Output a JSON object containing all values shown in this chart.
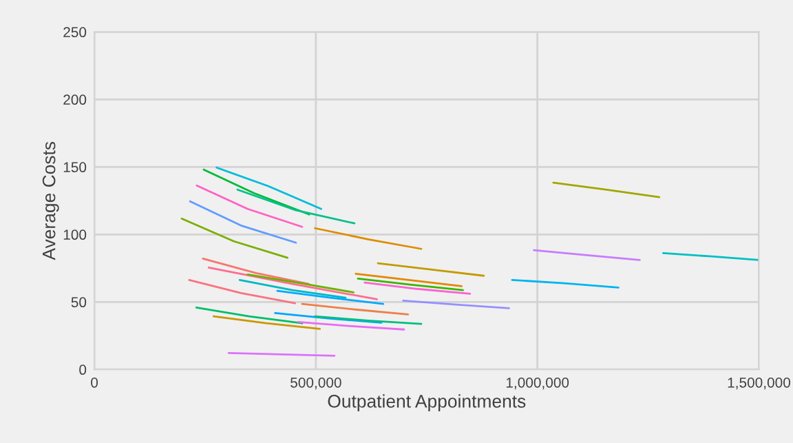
{
  "chart_data": {
    "type": "line",
    "xlabel": "Outpatient Appointments",
    "ylabel": "Average Costs",
    "xlim": [
      0,
      1500000
    ],
    "xticks": [
      0,
      {
        "value": 500000,
        "label": "500,000"
      },
      {
        "value": 1000000,
        "label": "1,000,000"
      },
      {
        "value": 1500000,
        "label": "1,500,000"
      }
    ],
    "ylim": [
      0,
      250
    ],
    "yticks": [
      0,
      50,
      100,
      150,
      200,
      250
    ],
    "grid": true,
    "legend": false,
    "marker": "none",
    "line_style": "solid",
    "series": [
      {
        "color": "#00bcd8",
        "x": [
          276000,
          393000,
          512000
        ],
        "values": [
          149.5,
          135.7,
          118.9
        ]
      },
      {
        "color": "#00ba38",
        "x": [
          247000,
          360000,
          485000
        ],
        "values": [
          148,
          130.6,
          114.8
        ]
      },
      {
        "color": "#00c08b",
        "x": [
          323000,
          455000,
          587000
        ],
        "values": [
          133.2,
          117.9,
          108.2
        ]
      },
      {
        "color": "#ff61c3",
        "x": [
          231000,
          346000,
          469000
        ],
        "values": [
          136.2,
          118.9,
          105.6
        ]
      },
      {
        "color": "#619cff",
        "x": [
          216000,
          331000,
          455000
        ],
        "values": [
          124.5,
          106.6,
          93.9
        ]
      },
      {
        "color": "#7cae00",
        "x": [
          197000,
          315000,
          436000
        ],
        "values": [
          111.7,
          94.9,
          82.7
        ]
      },
      {
        "color": "#de8c00",
        "x": [
          498000,
          618000,
          738000
        ],
        "values": [
          104.6,
          96.4,
          89.3
        ]
      },
      {
        "color": "#c49a00",
        "x": [
          640000,
          759000,
          879000
        ],
        "values": [
          78.6,
          74.0,
          69.4
        ]
      },
      {
        "color": "#a3a500",
        "x": [
          1036000,
          1154000,
          1275000
        ],
        "values": [
          138.3,
          133.2,
          127.6
        ]
      },
      {
        "color": "#c77cff",
        "x": [
          992000,
          1112000,
          1231000
        ],
        "values": [
          88.3,
          84.7,
          81.1
        ]
      },
      {
        "color": "#00bfc4",
        "x": [
          1284000,
          1393000,
          1500000
        ],
        "values": [
          86.2,
          83.7,
          81.1
        ]
      },
      {
        "color": "#00b4f0",
        "x": [
          943000,
          1061000,
          1183000
        ],
        "values": [
          66.3,
          63.8,
          60.7
        ]
      },
      {
        "color": "#9590ff",
        "x": [
          697000,
          817000,
          936000
        ],
        "values": [
          51.0,
          48.0,
          45.4
        ]
      },
      {
        "color": "#e58700",
        "x": [
          590000,
          710000,
          829000
        ],
        "values": [
          70.9,
          66.3,
          61.7
        ]
      },
      {
        "color": "#39b600",
        "x": [
          595000,
          713000,
          832000
        ],
        "values": [
          67.3,
          62.8,
          58.7
        ]
      },
      {
        "color": "#fd61d1",
        "x": [
          610000,
          728000,
          848000
        ],
        "values": [
          64.3,
          59.7,
          56.1
        ]
      },
      {
        "color": "#f8766d",
        "x": [
          245000,
          365000,
          484000
        ],
        "values": [
          82.1,
          71.4,
          63.3
        ]
      },
      {
        "color": "#ff6c91",
        "x": [
          258000,
          447000,
          638000
        ],
        "values": [
          75.5,
          63.3,
          52.0
        ]
      },
      {
        "color": "#6bb100",
        "x": [
          346000,
          466000,
          585000
        ],
        "values": [
          70.4,
          63.8,
          57.1
        ]
      },
      {
        "color": "#00b8c4",
        "x": [
          328000,
          447000,
          567000
        ],
        "values": [
          66.3,
          58.7,
          53.1
        ]
      },
      {
        "color": "#00a9ff",
        "x": [
          413000,
          533000,
          652000
        ],
        "values": [
          58.2,
          53.1,
          48.5
        ]
      },
      {
        "color": "#fb727f",
        "x": [
          214000,
          331000,
          453000
        ],
        "values": [
          66.3,
          56.6,
          49.0
        ]
      },
      {
        "color": "#ef7f49",
        "x": [
          469000,
          589000,
          708000
        ],
        "values": [
          48.5,
          44.4,
          40.8
        ]
      },
      {
        "color": "#00be67",
        "x": [
          230000,
          349000,
          469000
        ],
        "values": [
          45.9,
          39.3,
          34.2
        ]
      },
      {
        "color": "#c99800",
        "x": [
          269000,
          388000,
          509000
        ],
        "values": [
          39.3,
          34.2,
          30.1
        ]
      },
      {
        "color": "#00a5ff",
        "x": [
          408000,
          528000,
          648000
        ],
        "values": [
          41.8,
          37.8,
          34.7
        ]
      },
      {
        "color": "#00bf7d",
        "x": [
          498000,
          618000,
          738000
        ],
        "values": [
          39.3,
          36.2,
          33.7
        ]
      },
      {
        "color": "#e76bf3",
        "x": [
          460000,
          580000,
          699000
        ],
        "values": [
          35.2,
          32.1,
          29.6
        ]
      },
      {
        "color": "#db72fb",
        "x": [
          303000,
          422000,
          542000
        ],
        "values": [
          12.2,
          11.2,
          10.2
        ]
      }
    ]
  }
}
